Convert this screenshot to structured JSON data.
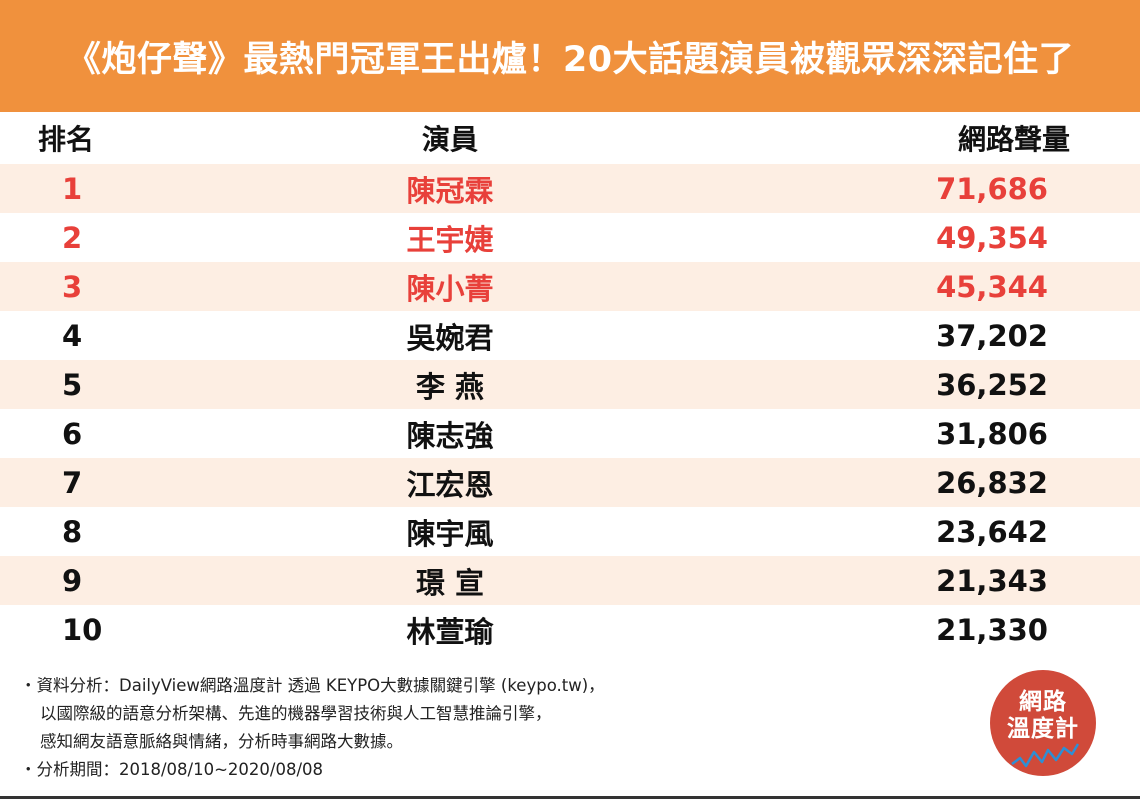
{
  "title": "《炮仔聲》最熱門冠軍王出爐！20大話題演員被觀眾深深記住了",
  "columns": {
    "rank": "排名",
    "actor": "演員",
    "volume": "網路聲量"
  },
  "rows": [
    {
      "rank": "1",
      "actor": "陳冠霖",
      "volume": "71,686"
    },
    {
      "rank": "2",
      "actor": "王宇婕",
      "volume": "49,354"
    },
    {
      "rank": "3",
      "actor": "陳小菁",
      "volume": "45,344"
    },
    {
      "rank": "4",
      "actor": "吳婉君",
      "volume": "37,202"
    },
    {
      "rank": "5",
      "actor": "李 燕",
      "volume": "36,252"
    },
    {
      "rank": "6",
      "actor": "陳志強",
      "volume": "31,806"
    },
    {
      "rank": "7",
      "actor": "江宏恩",
      "volume": "26,832"
    },
    {
      "rank": "8",
      "actor": "陳宇風",
      "volume": "23,642"
    },
    {
      "rank": "9",
      "actor": "璟 宣",
      "volume": "21,343"
    },
    {
      "rank": "10",
      "actor": "林萱瑜",
      "volume": "21,330"
    }
  ],
  "footer": {
    "line1": "・資料分析：DailyView網路溫度計 透過 KEYPO大數據關鍵引擎 (keypo.tw)，",
    "line2": "以國際級的語意分析架構、先進的機器學習技術與人工智慧推論引擎，",
    "line3": "感知網友語意脈絡與情緒，分析時事網路大數據。",
    "line4": "・分析期間：2018/08/10~2020/08/08"
  },
  "badge": {
    "line1": "網路",
    "line2": "溫度計"
  },
  "colors": {
    "header": "#f0913d",
    "highlight": "#e8403a",
    "row_shade": "#fdeee3",
    "badge": "#d04a3a"
  }
}
